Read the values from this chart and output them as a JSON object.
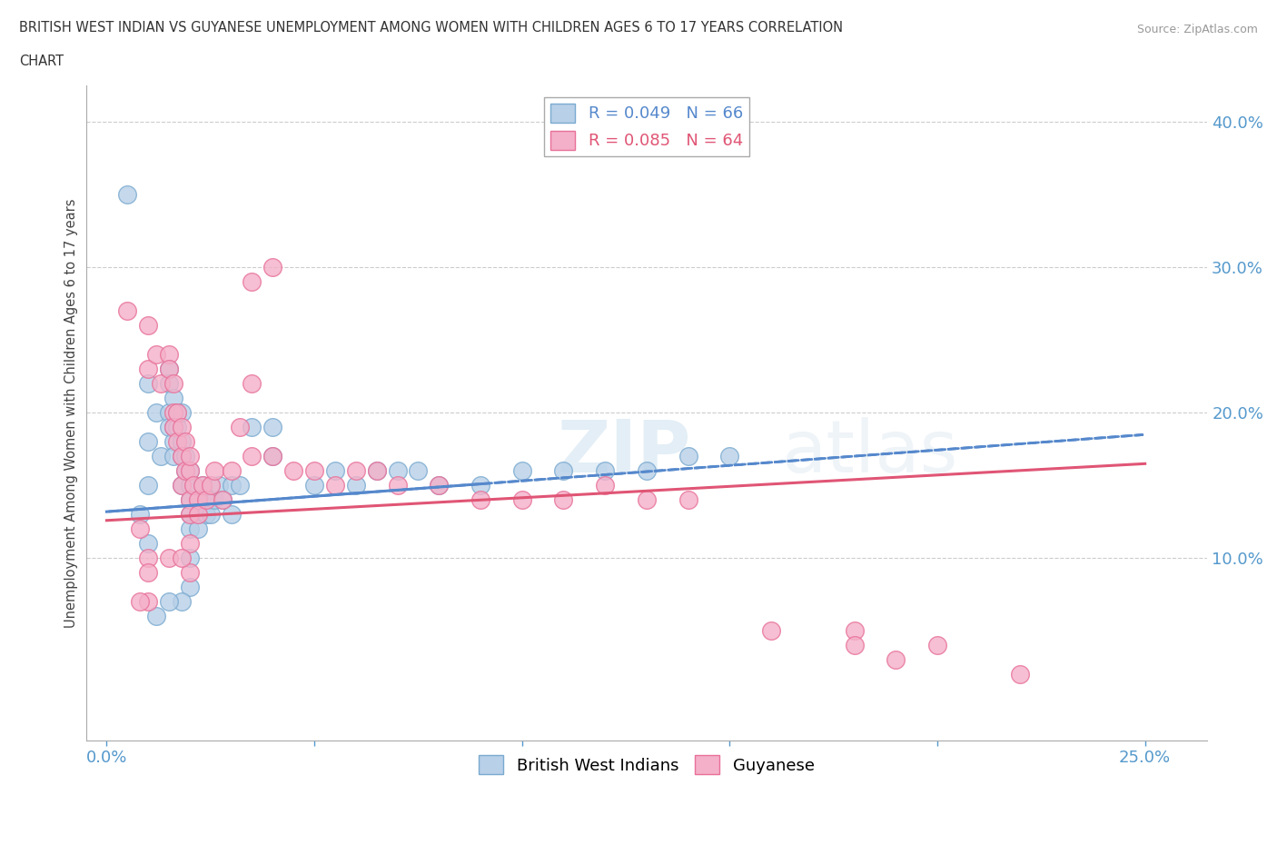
{
  "title_line1": "BRITISH WEST INDIAN VS GUYANESE UNEMPLOYMENT AMONG WOMEN WITH CHILDREN AGES 6 TO 17 YEARS CORRELATION",
  "title_line2": "CHART",
  "source": "Source: ZipAtlas.com",
  "xlim": [
    -0.005,
    0.265
  ],
  "ylim": [
    -0.025,
    0.425
  ],
  "legend_entry1": "R = 0.049   N = 66",
  "legend_entry2": "R = 0.085   N = 64",
  "blue_color": "#b8d0e8",
  "pink_color": "#f4b0c8",
  "blue_edge_color": "#7aaad0",
  "pink_edge_color": "#e87099",
  "blue_line_color": "#5588cc",
  "pink_line_color": "#e05575",
  "watermark_zip": "ZIP",
  "watermark_atlas": "atlas",
  "blue_x": [
    0.005,
    0.008,
    0.01,
    0.01,
    0.01,
    0.01,
    0.012,
    0.013,
    0.015,
    0.015,
    0.015,
    0.015,
    0.016,
    0.016,
    0.016,
    0.016,
    0.017,
    0.017,
    0.018,
    0.018,
    0.018,
    0.018,
    0.019,
    0.019,
    0.02,
    0.02,
    0.02,
    0.02,
    0.02,
    0.02,
    0.021,
    0.022,
    0.022,
    0.022,
    0.023,
    0.024,
    0.024,
    0.025,
    0.025,
    0.026,
    0.027,
    0.028,
    0.03,
    0.03,
    0.032,
    0.035,
    0.04,
    0.04,
    0.05,
    0.055,
    0.06,
    0.065,
    0.07,
    0.075,
    0.08,
    0.09,
    0.1,
    0.11,
    0.12,
    0.13,
    0.14,
    0.15,
    0.02,
    0.018,
    0.015,
    0.012
  ],
  "blue_y": [
    0.35,
    0.13,
    0.22,
    0.18,
    0.15,
    0.11,
    0.2,
    0.17,
    0.23,
    0.22,
    0.2,
    0.19,
    0.21,
    0.19,
    0.18,
    0.17,
    0.2,
    0.19,
    0.2,
    0.18,
    0.17,
    0.15,
    0.17,
    0.16,
    0.16,
    0.15,
    0.14,
    0.13,
    0.12,
    0.1,
    0.15,
    0.14,
    0.13,
    0.12,
    0.15,
    0.14,
    0.13,
    0.14,
    0.13,
    0.14,
    0.15,
    0.14,
    0.15,
    0.13,
    0.15,
    0.19,
    0.19,
    0.17,
    0.15,
    0.16,
    0.15,
    0.16,
    0.16,
    0.16,
    0.15,
    0.15,
    0.16,
    0.16,
    0.16,
    0.16,
    0.17,
    0.17,
    0.08,
    0.07,
    0.07,
    0.06
  ],
  "pink_x": [
    0.005,
    0.008,
    0.01,
    0.01,
    0.012,
    0.013,
    0.015,
    0.015,
    0.016,
    0.016,
    0.016,
    0.017,
    0.017,
    0.018,
    0.018,
    0.018,
    0.019,
    0.019,
    0.02,
    0.02,
    0.02,
    0.02,
    0.02,
    0.021,
    0.022,
    0.022,
    0.023,
    0.024,
    0.025,
    0.026,
    0.028,
    0.03,
    0.032,
    0.035,
    0.04,
    0.045,
    0.05,
    0.055,
    0.06,
    0.065,
    0.07,
    0.08,
    0.09,
    0.1,
    0.11,
    0.12,
    0.13,
    0.14,
    0.16,
    0.18,
    0.18,
    0.19,
    0.2,
    0.22,
    0.04,
    0.035,
    0.035,
    0.015,
    0.01,
    0.01,
    0.01,
    0.008,
    0.018,
    0.02
  ],
  "pink_y": [
    0.27,
    0.12,
    0.26,
    0.23,
    0.24,
    0.22,
    0.24,
    0.23,
    0.22,
    0.2,
    0.19,
    0.2,
    0.18,
    0.19,
    0.17,
    0.15,
    0.18,
    0.16,
    0.16,
    0.14,
    0.13,
    0.11,
    0.09,
    0.15,
    0.14,
    0.13,
    0.15,
    0.14,
    0.15,
    0.16,
    0.14,
    0.16,
    0.19,
    0.17,
    0.17,
    0.16,
    0.16,
    0.15,
    0.16,
    0.16,
    0.15,
    0.15,
    0.14,
    0.14,
    0.14,
    0.15,
    0.14,
    0.14,
    0.05,
    0.05,
    0.04,
    0.03,
    0.04,
    0.02,
    0.3,
    0.22,
    0.29,
    0.1,
    0.1,
    0.09,
    0.07,
    0.07,
    0.1,
    0.17
  ],
  "trend_blue_x0": 0.0,
  "trend_blue_x1": 0.25,
  "trend_blue_y0": 0.132,
  "trend_blue_y1": 0.185,
  "trend_pink_x0": 0.0,
  "trend_pink_x1": 0.25,
  "trend_pink_y0": 0.126,
  "trend_pink_y1": 0.165
}
